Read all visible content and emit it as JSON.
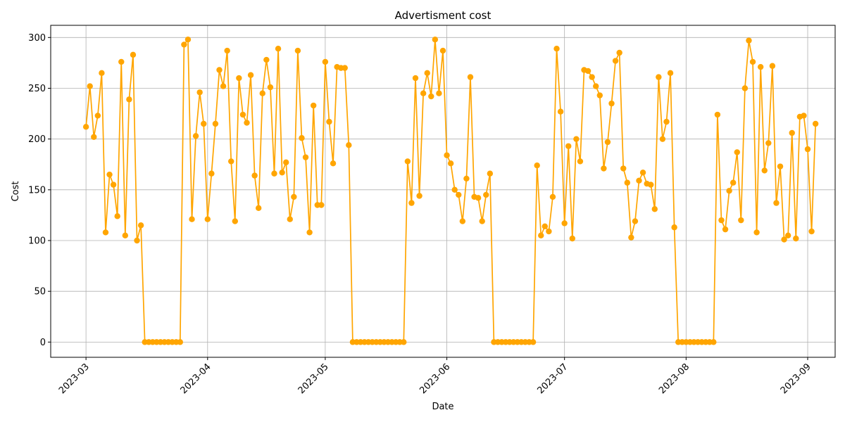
{
  "chart_data": {
    "type": "line",
    "title": "Advertisment cost",
    "xlabel": "Date",
    "ylabel": "Cost",
    "xlim": [
      "2023-02-20",
      "2023-09-08"
    ],
    "ylim": [
      -15,
      312
    ],
    "grid": true,
    "color": "#ffa500",
    "x_ticks": [
      "2023-03-01",
      "2023-04-01",
      "2023-05-01",
      "2023-06-01",
      "2023-07-01",
      "2023-08-01",
      "2023-09-01"
    ],
    "x_tick_labels": [
      "2023-03",
      "2023-04",
      "2023-05",
      "2023-06",
      "2023-07",
      "2023-08",
      "2023-09"
    ],
    "y_ticks": [
      0,
      50,
      100,
      150,
      200,
      250,
      300
    ],
    "start_date": "2023-03-01",
    "series": [
      {
        "values": [
          212,
          252,
          202,
          223,
          265,
          108,
          165,
          155,
          124,
          276,
          105,
          239,
          283,
          100,
          115,
          0,
          0,
          0,
          0,
          0,
          0,
          0,
          0,
          0,
          0,
          293,
          298,
          121,
          203,
          246,
          215,
          121,
          166,
          215,
          268,
          252,
          287,
          178,
          119,
          260,
          224,
          216,
          263,
          164,
          132,
          245,
          278,
          251,
          166,
          289,
          167,
          177,
          121,
          143,
          287,
          201,
          182,
          108,
          233,
          135,
          135,
          276,
          217,
          176,
          271,
          270,
          270,
          194,
          0,
          0,
          0,
          0,
          0,
          0,
          0,
          0,
          0,
          0,
          0,
          0,
          0,
          0,
          178,
          137,
          260,
          144,
          245,
          265,
          242,
          298,
          245,
          287,
          184,
          176,
          150,
          145,
          119,
          161,
          261,
          143,
          142,
          119,
          145,
          166,
          0,
          0,
          0,
          0,
          0,
          0,
          0,
          0,
          0,
          0,
          0,
          174,
          105,
          114,
          109,
          143,
          289,
          227,
          117,
          193,
          102,
          200,
          178,
          268,
          267,
          261,
          252,
          243,
          171,
          197,
          235,
          277,
          285,
          171,
          157,
          103,
          119,
          159,
          167,
          156,
          155,
          131,
          261,
          200,
          217,
          265,
          113,
          0,
          0,
          0,
          0,
          0,
          0,
          0,
          0,
          0,
          0,
          224,
          120,
          111,
          149,
          157,
          187,
          120,
          250,
          297,
          276,
          108,
          271,
          169,
          196,
          272,
          137,
          173,
          101,
          105,
          206,
          102,
          222,
          223,
          190,
          109,
          215
        ]
      }
    ]
  }
}
